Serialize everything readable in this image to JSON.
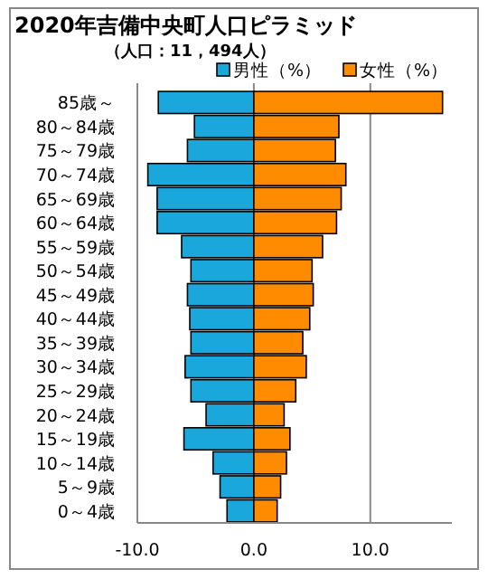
{
  "chart_data": {
    "type": "bar",
    "orientation": "horizontal",
    "stacked": true,
    "title": "2020年吉備中央町人口ピラミッド",
    "subtitle": "（人口：11，494人）",
    "categories": [
      "85歳～",
      "80～84歳",
      "75～79歳",
      "70～74歳",
      "65～69歳",
      "60～64歳",
      "55～59歳",
      "50～54歳",
      "45～49歳",
      "40～44歳",
      "35～39歳",
      "30～34歳",
      "25～29歳",
      "20～24歳",
      "15～19歳",
      "10～14歳",
      "5～9歳",
      "0～4歳"
    ],
    "series": [
      {
        "name": "男性（%）",
        "color": "#1aa8dc",
        "values": [
          -8.2,
          -5.1,
          -5.7,
          -9.1,
          -8.3,
          -8.3,
          -6.2,
          -5.4,
          -5.7,
          -5.5,
          -5.4,
          -5.9,
          -5.4,
          -4.1,
          -6.0,
          -3.5,
          -2.9,
          -2.3
        ]
      },
      {
        "name": "女性（%）",
        "color": "#ff8c00",
        "values": [
          16.2,
          7.3,
          7.0,
          7.9,
          7.5,
          7.1,
          5.9,
          5.0,
          5.1,
          4.8,
          4.2,
          4.5,
          3.6,
          2.6,
          3.1,
          2.8,
          2.3,
          2.0
        ]
      }
    ],
    "xlim": [
      -10,
      17
    ],
    "xticks": [
      {
        "value": -10,
        "label": "-10.0"
      },
      {
        "value": 0,
        "label": "0.0"
      },
      {
        "value": 10,
        "label": "10.0"
      }
    ],
    "grid": "x",
    "legend": "top right"
  }
}
